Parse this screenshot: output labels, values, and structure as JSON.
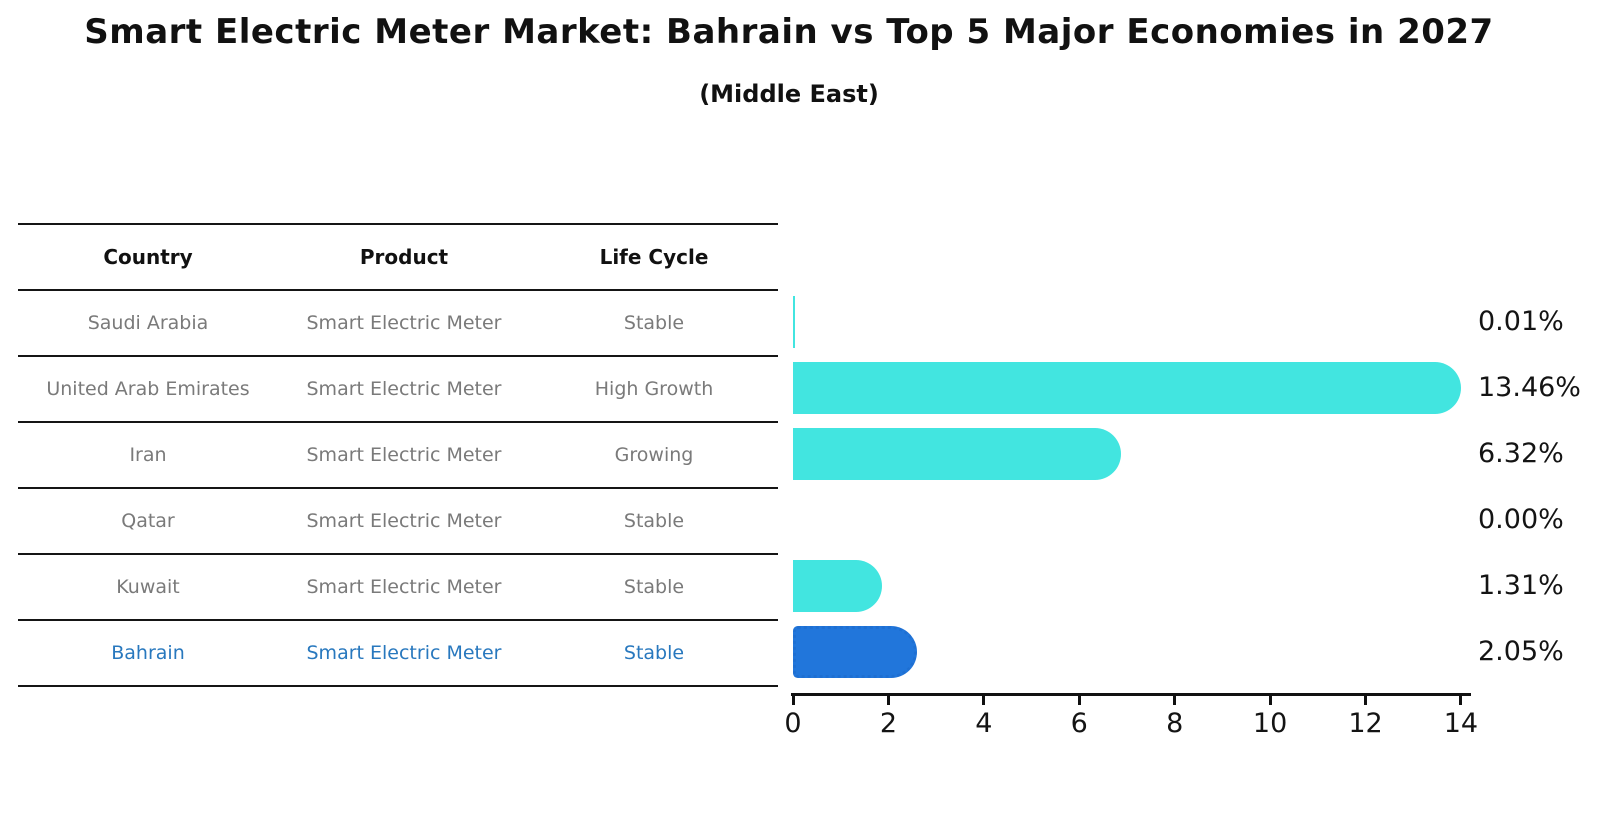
{
  "title": "Smart Electric Meter Market: Bahrain vs Top 5 Major Economies in 2027",
  "subtitle": "(Middle East)",
  "table": {
    "headers": [
      "Country",
      "Product",
      "Life Cycle"
    ],
    "rows": [
      {
        "country": "Saudi Arabia",
        "product": "Smart Electric Meter",
        "life_cycle": "Stable"
      },
      {
        "country": "United Arab Emirates",
        "product": "Smart Electric Meter",
        "life_cycle": "High Growth"
      },
      {
        "country": "Iran",
        "product": "Smart Electric Meter",
        "life_cycle": "Growing"
      },
      {
        "country": "Qatar",
        "product": "Smart Electric Meter",
        "life_cycle": "Stable"
      },
      {
        "country": "Kuwait",
        "product": "Smart Electric Meter",
        "life_cycle": "Stable"
      },
      {
        "country": "Bahrain",
        "product": "Smart Electric Meter",
        "life_cycle": "Stable"
      }
    ],
    "highlighted_row": "Bahrain"
  },
  "chart_data": {
    "type": "bar",
    "orientation": "horizontal",
    "title": "Smart Electric Meter Market: Bahrain vs Top 5 Major Economies in 2027 (Middle East)",
    "categories": [
      "Saudi Arabia",
      "United Arab Emirates",
      "Iran",
      "Qatar",
      "Kuwait",
      "Bahrain"
    ],
    "values": [
      0.01,
      13.46,
      6.32,
      0.0,
      1.31,
      2.05
    ],
    "value_labels": [
      "0.01%",
      "13.46%",
      "6.32%",
      "0.00%",
      "1.31%",
      "2.05%"
    ],
    "xlim": [
      0,
      14
    ],
    "xticks": [
      0,
      2,
      4,
      6,
      8,
      10,
      12,
      14
    ],
    "highlight_index": 5,
    "grid": false,
    "legend": "none"
  },
  "colors": {
    "bar": "#42E5E0",
    "highlight_bar": "#2176DB",
    "highlight_bar_border": "#1E6FD2",
    "highlight_text": "#2878BE",
    "row_text": "#7A7A7A",
    "header_text": "#111111",
    "axis": "#111111",
    "value_label": "#141414",
    "background": "#FFFFFF"
  }
}
